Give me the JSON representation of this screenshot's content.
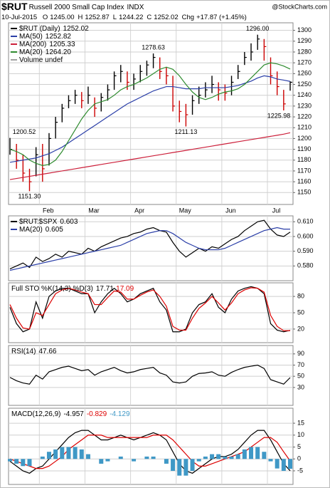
{
  "header": {
    "symbol": "$RUT",
    "title": "Russell 2000 Small Cap Index",
    "exchange": "INDX",
    "watermark": "@StockCharts.com",
    "date": "10-Jul-2015",
    "quote": [
      {
        "key": "O",
        "value": "1245.00"
      },
      {
        "key": "H",
        "value": "1252.87"
      },
      {
        "key": "L",
        "value": "1244.22"
      },
      {
        "key": "C",
        "value": "1252.02"
      },
      {
        "key": "Chg",
        "value": "+17.87 (+1.45%)"
      }
    ]
  },
  "chart_data": [
    {
      "type": "hlc",
      "grid": true,
      "up_color": "#000000",
      "down_color": "#cc0000",
      "categories": [
        null,
        null,
        null,
        null,
        null,
        "Feb",
        null,
        null,
        null,
        null,
        null,
        null,
        "Mar",
        null,
        null,
        null,
        null,
        null,
        null,
        "Apr",
        null,
        null,
        null,
        null,
        null,
        null,
        "May",
        null,
        null,
        null,
        null,
        null,
        null,
        "Jun",
        null,
        null,
        null,
        null,
        null,
        null,
        "Jul",
        null,
        null,
        null
      ],
      "ylim": [
        1139,
        1307
      ],
      "yticks": [
        1150,
        1160,
        1170,
        1180,
        1190,
        1200,
        1210,
        1220,
        1230,
        1240,
        1250,
        1260,
        1270,
        1280,
        1290,
        1300
      ],
      "series": [
        {
          "name": "$RUT (Daily)",
          "legend_value": "1252.02",
          "kind": "hlc",
          "color": "#000000",
          "highs": [
            1200.52,
            1195,
            1185,
            1172,
            1192,
            1195,
            1205,
            1220,
            1232,
            1240,
            1245,
            1243,
            1248,
            1238,
            1242,
            1250,
            1262,
            1268,
            1262,
            1260,
            1268,
            1272,
            1278.63,
            1275,
            1266,
            1258,
            1235,
            1232,
            1240,
            1248,
            1252,
            1258,
            1252,
            1250,
            1258,
            1268,
            1280,
            1288,
            1296,
            1292,
            1275,
            1262,
            1245,
            1252.87
          ],
          "lows": [
            1185,
            1172,
            1160,
            1151.3,
            1165,
            1160,
            1175,
            1200,
            1215,
            1228,
            1232,
            1228,
            1232,
            1220,
            1225,
            1235,
            1245,
            1252,
            1245,
            1245,
            1252,
            1258,
            1265,
            1255,
            1250,
            1225,
            1215,
            1211.13,
            1222,
            1232,
            1238,
            1242,
            1235,
            1235,
            1240,
            1255,
            1268,
            1272,
            1282,
            1272,
            1250,
            1240,
            1225.98,
            1244.22
          ],
          "values": [
            1190,
            1180,
            1168,
            1160,
            1185,
            1172,
            1200,
            1215,
            1228,
            1235,
            1240,
            1235,
            1240,
            1228,
            1238,
            1245,
            1258,
            1262,
            1252,
            1255,
            1262,
            1268,
            1275,
            1262,
            1258,
            1230,
            1225,
            1222,
            1235,
            1240,
            1245,
            1250,
            1245,
            1242,
            1252,
            1262,
            1275,
            1280,
            1292,
            1285,
            1258,
            1248,
            1232,
            1252.02
          ]
        },
        {
          "name": "MA(50)",
          "legend_value": "1252.82",
          "color": "#2b3fa8",
          "values": [
            1178,
            1179,
            1180,
            1181,
            1182,
            1184,
            1186,
            1189,
            1192,
            1196,
            1200,
            1204,
            1208,
            1212,
            1216,
            1220,
            1224,
            1228,
            1232,
            1235,
            1238,
            1241,
            1244,
            1246,
            1248,
            1248,
            1247,
            1246,
            1246,
            1246,
            1247,
            1247,
            1247,
            1247,
            1248,
            1249,
            1251,
            1253,
            1256,
            1258,
            1257,
            1255,
            1254,
            1252.82
          ]
        },
        {
          "name": "MA(200)",
          "legend_value": "1205.33",
          "color": "#cc1f3a",
          "values": [
            1162,
            1163,
            1164,
            1165,
            1166,
            1167,
            1168,
            1169,
            1170,
            1171,
            1172,
            1173,
            1174,
            1175,
            1176,
            1177,
            1178,
            1179,
            1180,
            1181,
            1182,
            1183,
            1184,
            1185,
            1186,
            1187,
            1188,
            1189,
            1190,
            1191,
            1192,
            1193,
            1194,
            1195,
            1196,
            1197,
            1198,
            1199,
            1200,
            1201,
            1202,
            1203,
            1204,
            1205.33
          ]
        },
        {
          "name": "MA(20)",
          "legend_value": "1264.20",
          "color": "#2e8b2e",
          "values": [
            1190,
            1188,
            1185,
            1180,
            1177,
            1175,
            1176,
            1180,
            1188,
            1198,
            1208,
            1218,
            1226,
            1232,
            1234,
            1236,
            1240,
            1245,
            1248,
            1250,
            1253,
            1256,
            1260,
            1264,
            1266,
            1264,
            1258,
            1250,
            1243,
            1238,
            1236,
            1238,
            1241,
            1243,
            1244,
            1246,
            1250,
            1256,
            1262,
            1268,
            1270,
            1269,
            1267,
            1264.2
          ]
        }
      ],
      "extra_legend": [
        {
          "name": "Volume undef",
          "color": "#a0a0a0"
        }
      ],
      "annotations": [
        {
          "value": 1200.52,
          "label": "1200.52"
        },
        {
          "value": 1151.3,
          "label": "1151.30"
        },
        {
          "value": 1278.63,
          "label": "1278.63"
        },
        {
          "value": 1211.13,
          "label": "1211.13"
        },
        {
          "value": 1296,
          "label": "1296.00"
        },
        {
          "value": 1225.98,
          "label": "1225.98"
        }
      ]
    },
    {
      "type": "line",
      "grid": true,
      "ylim": [
        0.57,
        0.614
      ],
      "yticks": [
        {
          "value": 0.58,
          "label": "0.580"
        },
        {
          "value": 0.59,
          "label": "0.590"
        },
        {
          "value": 0.6,
          "label": "0.600"
        },
        {
          "value": 0.61,
          "label": "0.610"
        }
      ],
      "series": [
        {
          "name": "$RUT:$SPX",
          "legend_value": "0.603",
          "color": "#000000",
          "values": [
            0.578,
            0.58,
            0.582,
            0.579,
            0.586,
            0.583,
            0.585,
            0.588,
            0.586,
            0.59,
            0.589,
            0.588,
            0.592,
            0.59,
            0.593,
            0.595,
            0.597,
            0.599,
            0.6,
            0.602,
            0.603,
            0.605,
            0.606,
            0.604,
            0.603,
            0.596,
            0.59,
            0.586,
            0.589,
            0.592,
            0.59,
            0.593,
            0.592,
            0.595,
            0.598,
            0.6,
            0.604,
            0.607,
            0.61,
            0.611,
            0.605,
            0.601,
            0.6,
            0.603
          ]
        },
        {
          "name": "MA(20)",
          "legend_value": "0.605",
          "color": "#2b3fa8",
          "values": [
            0.577,
            0.578,
            0.579,
            0.58,
            0.581,
            0.582,
            0.583,
            0.584,
            0.585,
            0.586,
            0.587,
            0.588,
            0.589,
            0.59,
            0.591,
            0.592,
            0.593,
            0.594,
            0.596,
            0.598,
            0.6,
            0.602,
            0.603,
            0.604,
            0.604,
            0.602,
            0.599,
            0.596,
            0.594,
            0.592,
            0.591,
            0.591,
            0.591,
            0.592,
            0.594,
            0.596,
            0.598,
            0.6,
            0.602,
            0.604,
            0.605,
            0.606,
            0.605,
            0.605
          ]
        }
      ]
    },
    {
      "type": "line",
      "grid": true,
      "title": "Full STO %K(14,3) %D(3)",
      "ylim": [
        -5,
        105
      ],
      "yticks": [
        20,
        50,
        80
      ],
      "series": [
        {
          "legend_value": "17.71",
          "color": "#000000",
          "values": [
            60,
            30,
            15,
            20,
            70,
            40,
            80,
            90,
            95,
            95,
            90,
            85,
            85,
            50,
            70,
            85,
            95,
            85,
            70,
            75,
            85,
            90,
            95,
            70,
            55,
            15,
            15,
            20,
            50,
            65,
            70,
            85,
            60,
            50,
            75,
            90,
            95,
            98,
            95,
            85,
            30,
            18,
            15,
            17.71
          ]
        },
        {
          "legend_value": "17.09",
          "color": "#dd0000",
          "values": [
            65,
            40,
            22,
            20,
            50,
            45,
            65,
            85,
            92,
            95,
            92,
            88,
            85,
            65,
            65,
            78,
            90,
            88,
            75,
            75,
            82,
            88,
            92,
            80,
            62,
            25,
            18,
            18,
            40,
            58,
            68,
            80,
            68,
            55,
            68,
            85,
            92,
            96,
            95,
            88,
            45,
            25,
            17,
            17.09
          ]
        }
      ]
    },
    {
      "type": "line",
      "grid": true,
      "title": "RSI(14)",
      "ylim": [
        -2,
        105
      ],
      "yticks": [
        30,
        50,
        70,
        90
      ],
      "series": [
        {
          "legend_value": "47.66",
          "color": "#000000",
          "values": [
            48,
            42,
            38,
            36,
            52,
            45,
            58,
            62,
            66,
            68,
            64,
            60,
            62,
            52,
            58,
            62,
            66,
            60,
            56,
            58,
            62,
            64,
            66,
            56,
            52,
            40,
            38,
            40,
            50,
            55,
            56,
            58,
            52,
            50,
            57,
            62,
            66,
            68,
            70,
            64,
            44,
            40,
            36,
            47.66
          ]
        }
      ]
    },
    {
      "type": "macd",
      "grid": true,
      "title": "MACD(12,26,9)",
      "ylim": [
        -10.7,
        21.3
      ],
      "yticks": [
        -5,
        0,
        5,
        10,
        15
      ],
      "series": [
        {
          "legend_value": "-4.957",
          "color": "#000000",
          "values": [
            -1,
            -3,
            -5,
            -6,
            -4,
            -3,
            0,
            3,
            6,
            9,
            11,
            12,
            12,
            10,
            8,
            8,
            9,
            10,
            9,
            8,
            9,
            10,
            11,
            10,
            8,
            3,
            -2,
            -5,
            -6,
            -4,
            -2,
            0,
            1,
            1,
            2,
            4,
            7,
            10,
            12,
            12,
            8,
            3,
            -2,
            -4.957
          ]
        },
        {
          "legend_value": "-0.829",
          "color": "#dd0000",
          "values": [
            0,
            -1,
            -2,
            -3,
            -4,
            -4,
            -3,
            -1,
            1,
            4,
            6,
            8,
            10,
            10,
            10,
            9,
            9,
            9,
            9,
            9,
            9,
            9,
            10,
            10,
            10,
            8,
            5,
            2,
            -1,
            -3,
            -3,
            -2,
            -1,
            0,
            1,
            2,
            3,
            5,
            7,
            9,
            9,
            7,
            3,
            -0.829
          ]
        },
        {
          "legend_value": "-4.129",
          "color": "#3f98c6",
          "kind": "histogram",
          "values": [
            -1,
            -2,
            -3,
            -3,
            0,
            1,
            3,
            4,
            5,
            5,
            5,
            4,
            2,
            0,
            -2,
            -1,
            0,
            1,
            0,
            -1,
            0,
            1,
            1,
            0,
            -2,
            -5,
            -7,
            -7,
            -5,
            -1,
            1,
            2,
            2,
            1,
            1,
            2,
            4,
            5,
            5,
            3,
            -1,
            -4,
            -5,
            -4.129
          ]
        }
      ]
    }
  ]
}
